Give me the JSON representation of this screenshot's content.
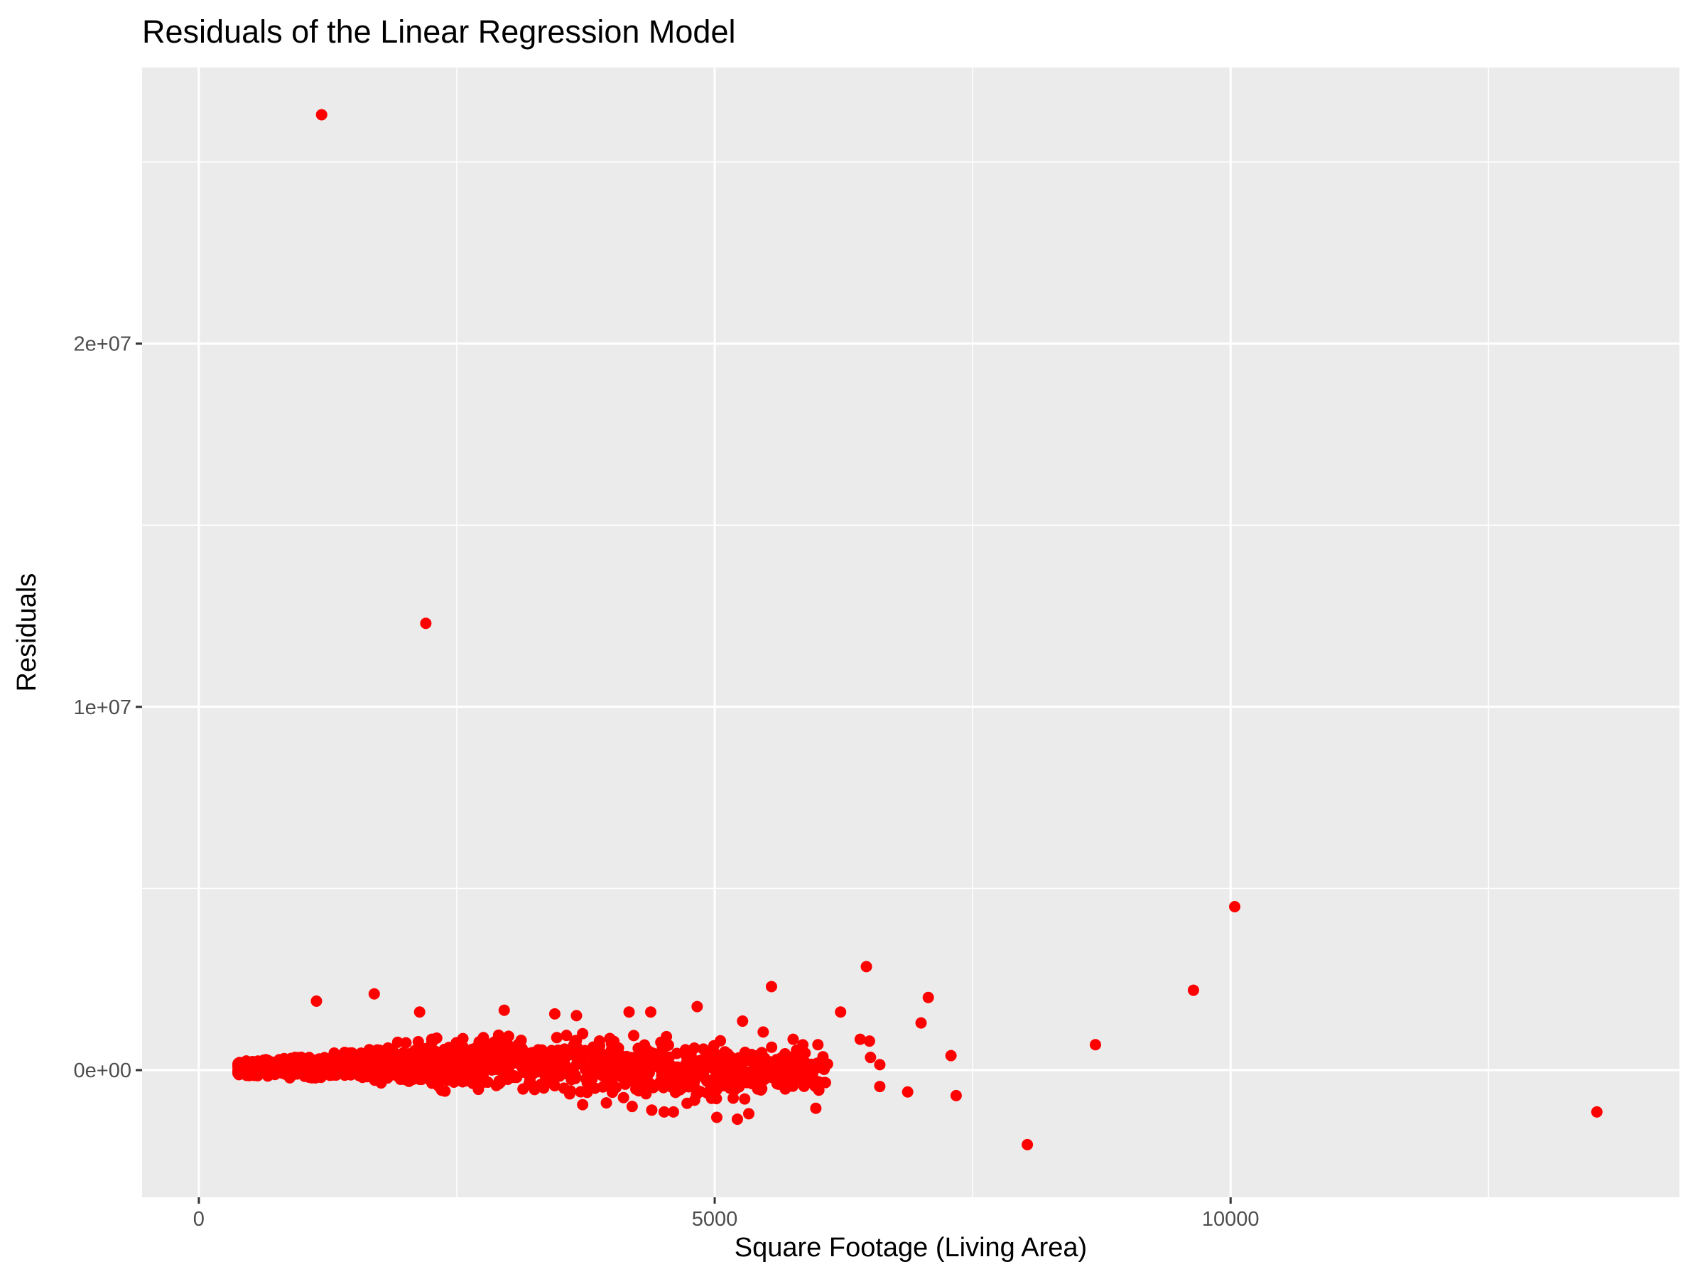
{
  "chart_data": {
    "type": "scatter",
    "title": "Residuals of the Linear Regression Model",
    "xlabel": "Square Footage (Living Area)",
    "ylabel": "Residuals",
    "xlim": [
      -550,
      14350
    ],
    "ylim": [
      -3500000,
      27600000
    ],
    "x_ticks": [
      {
        "value": 0,
        "label": "0"
      },
      {
        "value": 5000,
        "label": "5000"
      },
      {
        "value": 10000,
        "label": "10000"
      }
    ],
    "x_minor_ticks": [
      2500,
      7500,
      12500
    ],
    "y_ticks": [
      {
        "value": 0,
        "label": "0e+00"
      },
      {
        "value": 10000000,
        "label": "1e+07"
      },
      {
        "value": 20000000,
        "label": "2e+07"
      }
    ],
    "y_minor_ticks": [
      5000000,
      15000000,
      25000000
    ],
    "grid": true,
    "legend": "none",
    "colors": {
      "panel": "#ebebeb",
      "grid": "#ffffff",
      "point": "#ff0000",
      "tick": "#333333"
    },
    "outliers": [
      {
        "x": 1190,
        "y": 26300000
      },
      {
        "x": 2200,
        "y": 12300000
      },
      {
        "x": 10040,
        "y": 4500000
      },
      {
        "x": 9640,
        "y": 2200000
      },
      {
        "x": 6470,
        "y": 2850000
      },
      {
        "x": 5550,
        "y": 2300000
      },
      {
        "x": 7070,
        "y": 2000000
      },
      {
        "x": 6220,
        "y": 1600000
      },
      {
        "x": 7000,
        "y": 1300000
      },
      {
        "x": 8690,
        "y": 700000
      },
      {
        "x": 7290,
        "y": 400000
      },
      {
        "x": 8030,
        "y": -2050000
      },
      {
        "x": 13550,
        "y": -1150000
      },
      {
        "x": 7340,
        "y": -700000
      },
      {
        "x": 6870,
        "y": -600000
      },
      {
        "x": 6600,
        "y": -450000
      },
      {
        "x": 6600,
        "y": 150000
      },
      {
        "x": 6510,
        "y": 350000
      },
      {
        "x": 6500,
        "y": 800000
      },
      {
        "x": 6410,
        "y": 850000
      },
      {
        "x": 1700,
        "y": 2100000
      },
      {
        "x": 1140,
        "y": 1900000
      },
      {
        "x": 2140,
        "y": 1600000
      },
      {
        "x": 2960,
        "y": 1650000
      },
      {
        "x": 3450,
        "y": 1550000
      },
      {
        "x": 3660,
        "y": 1500000
      },
      {
        "x": 4170,
        "y": 1600000
      },
      {
        "x": 4380,
        "y": 1600000
      },
      {
        "x": 4830,
        "y": 1750000
      },
      {
        "x": 5270,
        "y": 1350000
      },
      {
        "x": 5020,
        "y": -1300000
      },
      {
        "x": 5220,
        "y": -1350000
      },
      {
        "x": 5330,
        "y": -1200000
      },
      {
        "x": 4390,
        "y": -1100000
      },
      {
        "x": 4510,
        "y": -1150000
      },
      {
        "x": 4600,
        "y": -1150000
      },
      {
        "x": 5980,
        "y": -1050000
      },
      {
        "x": 5760,
        "y": 850000
      },
      {
        "x": 6000,
        "y": 700000
      },
      {
        "x": 5470,
        "y": 1050000
      },
      {
        "x": 3950,
        "y": -900000
      },
      {
        "x": 4200,
        "y": -1000000
      },
      {
        "x": 3720,
        "y": -950000
      }
    ],
    "cluster": {
      "x_range": [
        380,
        6100
      ],
      "residual_envelope": [
        [
          380,
          -200000,
          300000
        ],
        [
          1000,
          -300000,
          450000
        ],
        [
          2000,
          -600000,
          900000
        ],
        [
          3000,
          -850000,
          1200000
        ],
        [
          4000,
          -950000,
          1250000
        ],
        [
          5000,
          -1100000,
          1100000
        ],
        [
          6100,
          -900000,
          800000
        ]
      ],
      "count": 1600
    }
  }
}
